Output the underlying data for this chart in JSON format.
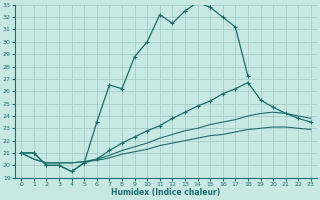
{
  "xlabel": "Humidex (Indice chaleur)",
  "xlim": [
    -0.5,
    23.5
  ],
  "ylim": [
    19,
    33
  ],
  "yticks": [
    19,
    20,
    21,
    22,
    23,
    24,
    25,
    26,
    27,
    28,
    29,
    30,
    31,
    32,
    33
  ],
  "xticks": [
    0,
    1,
    2,
    3,
    4,
    5,
    6,
    7,
    8,
    9,
    10,
    11,
    12,
    13,
    14,
    15,
    16,
    17,
    18,
    19,
    20,
    21,
    22,
    23
  ],
  "bg_color": "#c8e8e4",
  "line_color": "#1a6e6e",
  "grid_color": "#a0c8c4",
  "lines": [
    {
      "x": [
        0,
        1,
        2,
        3,
        4,
        5,
        6,
        7,
        8,
        9,
        10,
        11,
        12,
        13,
        14,
        15,
        16,
        17,
        18
      ],
      "y": [
        21.0,
        21.0,
        20.0,
        20.0,
        19.5,
        20.2,
        23.5,
        26.5,
        26.2,
        28.8,
        30.0,
        32.2,
        31.5,
        32.5,
        33.2,
        32.8,
        32.0,
        31.2,
        27.2
      ],
      "marker": true
    },
    {
      "x": [
        0,
        1,
        2,
        3,
        4,
        5,
        6,
        7,
        8,
        9,
        10,
        11,
        12,
        13,
        14,
        15,
        16,
        17,
        18,
        19,
        20,
        21,
        22,
        23
      ],
      "y": [
        21.0,
        21.0,
        20.0,
        20.0,
        19.5,
        20.2,
        20.5,
        21.2,
        21.8,
        22.3,
        22.8,
        23.2,
        23.8,
        24.3,
        24.8,
        25.2,
        25.8,
        26.2,
        26.7,
        25.3,
        24.7,
        24.2,
        23.8,
        23.5
      ],
      "marker": true
    },
    {
      "x": [
        0,
        1,
        2,
        3,
        4,
        5,
        6,
        7,
        8,
        9,
        10,
        11,
        12,
        13,
        14,
        15,
        16,
        17,
        18,
        19,
        20,
        21,
        22,
        23
      ],
      "y": [
        21.0,
        20.5,
        20.2,
        20.2,
        20.2,
        20.3,
        20.5,
        20.8,
        21.2,
        21.5,
        21.8,
        22.2,
        22.5,
        22.8,
        23.0,
        23.3,
        23.5,
        23.7,
        24.0,
        24.2,
        24.3,
        24.2,
        24.0,
        23.8
      ],
      "marker": false
    },
    {
      "x": [
        0,
        1,
        2,
        3,
        4,
        5,
        6,
        7,
        8,
        9,
        10,
        11,
        12,
        13,
        14,
        15,
        16,
        17,
        18,
        19,
        20,
        21,
        22,
        23
      ],
      "y": [
        21.0,
        20.5,
        20.2,
        20.2,
        20.2,
        20.3,
        20.4,
        20.6,
        20.9,
        21.1,
        21.3,
        21.6,
        21.8,
        22.0,
        22.2,
        22.4,
        22.5,
        22.7,
        22.9,
        23.0,
        23.1,
        23.1,
        23.0,
        22.9
      ],
      "marker": false
    }
  ]
}
